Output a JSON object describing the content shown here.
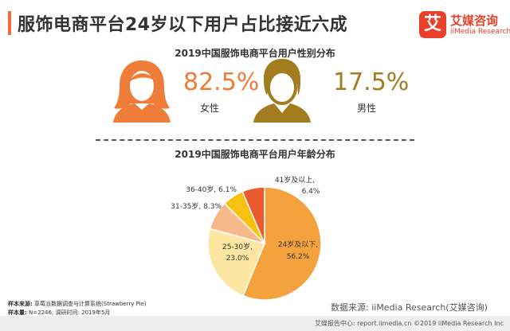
{
  "header": {
    "title": "服饰电商平台24岁以下用户占比接近六成",
    "logo_mark": "艾",
    "logo_cn": "艾媒咨询",
    "logo_en": "iiMedia Research"
  },
  "gender": {
    "title": "2019中国服饰电商平台用户性别分布",
    "female": {
      "percent": "82.5%",
      "label": "女性",
      "color": "#f07c3a"
    },
    "male": {
      "percent": "17.5%",
      "label": "男性",
      "color": "#a27c1e"
    }
  },
  "chart_data": {
    "type": "pie",
    "title": "2019中国服饰电商平台用户年龄分布",
    "slices": [
      {
        "name": "24岁及以下",
        "value": 56.2,
        "label_line1": "24岁及以下,",
        "label_line2": "56.2%",
        "color": "#f4a23e"
      },
      {
        "name": "25-30岁",
        "value": 23.0,
        "label_line1": "25-30岁,",
        "label_line2": "23.0%",
        "color": "#fde6a2"
      },
      {
        "name": "31-35岁",
        "value": 8.3,
        "label_line1": "31-35岁, 8.3%",
        "label_line2": "",
        "color": "#f8b98a"
      },
      {
        "name": "36-40岁",
        "value": 6.1,
        "label_line1": "36-40岁, 6.1%",
        "label_line2": "",
        "color": "#f6c20f"
      },
      {
        "name": "41岁及以上",
        "value": 6.4,
        "label_line1": "41岁及以上,",
        "label_line2": "6.4%",
        "color": "#ea5a2f"
      }
    ]
  },
  "notes": {
    "source_label": "样本来源:",
    "source_value": "草莓派数据调查与计算系统(Strawberry Pie)",
    "sample_label": "样本量:",
    "sample_value": "N=2246; 调研时间: 2019年5月"
  },
  "data_source": "数据来源: iiMedia Research(艾媒咨询)",
  "footer": "艾媒报告中心: report.iimedia.cn ©2019 iiMedia Research Inc"
}
